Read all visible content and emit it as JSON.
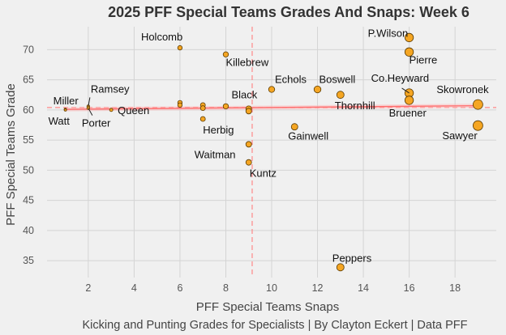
{
  "chart_data": {
    "type": "scatter",
    "title": "2025 PFF Special Teams Grades And Snaps: Week 6",
    "xlabel": "PFF Special Teams Snaps",
    "ylabel": "PFF Special Teams Grade",
    "caption": "Kicking and Punting Grades for Specialists | By Clayton Eckert | Data PFF",
    "xlim": [
      0.2,
      19.8
    ],
    "ylim": [
      32.2,
      73.8
    ],
    "x_ticks": [
      2,
      4,
      6,
      8,
      10,
      12,
      14,
      16,
      18
    ],
    "y_ticks": [
      35,
      40,
      45,
      50,
      55,
      60,
      65,
      70
    ],
    "grid": true,
    "reference_lines": {
      "x_mean": 9.15,
      "y_mean": 60.4
    },
    "trend_line": {
      "x": [
        1,
        19
      ],
      "y": [
        60.1,
        60.7
      ]
    },
    "point_color": "#f5a623",
    "point_stroke": "#5a3a00",
    "ref_line_color": "#ff8888",
    "trend_color": "#ff6a6a",
    "points": [
      {
        "name": "Holcomb",
        "x": 6,
        "y": 70.3
      },
      {
        "name": "Killebrew",
        "x": 8,
        "y": 69.2
      },
      {
        "name": "P.Wilson",
        "x": 16,
        "y": 72
      },
      {
        "name": "Pierre",
        "x": 16,
        "y": 69.6
      },
      {
        "name": "Echols",
        "x": 10,
        "y": 63.4
      },
      {
        "name": "Boswell",
        "x": 12,
        "y": 63.4
      },
      {
        "name": "Co.Heyward",
        "x": 16,
        "y": 62.8
      },
      {
        "name": "Thornhill",
        "x": 13,
        "y": 62.5
      },
      {
        "name": "Bruener",
        "x": 16,
        "y": 61.6
      },
      {
        "name": "Skowronek",
        "x": 19,
        "y": 60.9
      },
      {
        "name": "Sawyer",
        "x": 19,
        "y": 57.4
      },
      {
        "name": "Black",
        "x": 8,
        "y": 60.6
      },
      {
        "name": "Herbig",
        "x": 7,
        "y": 58.5
      },
      {
        "name": "Ramsey",
        "x": 2,
        "y": 60.6
      },
      {
        "name": "Miller",
        "x": 1,
        "y": 60.1
      },
      {
        "name": "Watt",
        "x": 1,
        "y": 60
      },
      {
        "name": "Porter",
        "x": 2,
        "y": 60.3
      },
      {
        "name": "Queen",
        "x": 3,
        "y": 60
      },
      {
        "name": "Gainwell",
        "x": 11,
        "y": 57.2
      },
      {
        "name": "Waitman",
        "x": 9,
        "y": 54.3
      },
      {
        "name": "Kuntz",
        "x": 9,
        "y": 51.3
      },
      {
        "name": "Peppers",
        "x": 13,
        "y": 33.9
      },
      {
        "name": "",
        "x": 6,
        "y": 61.2
      },
      {
        "name": "",
        "x": 6,
        "y": 60.8
      },
      {
        "name": "",
        "x": 7,
        "y": 60.8
      },
      {
        "name": "",
        "x": 7,
        "y": 60.3
      },
      {
        "name": "",
        "x": 9,
        "y": 60.2
      },
      {
        "name": "",
        "x": 9,
        "y": 59.8
      }
    ]
  }
}
